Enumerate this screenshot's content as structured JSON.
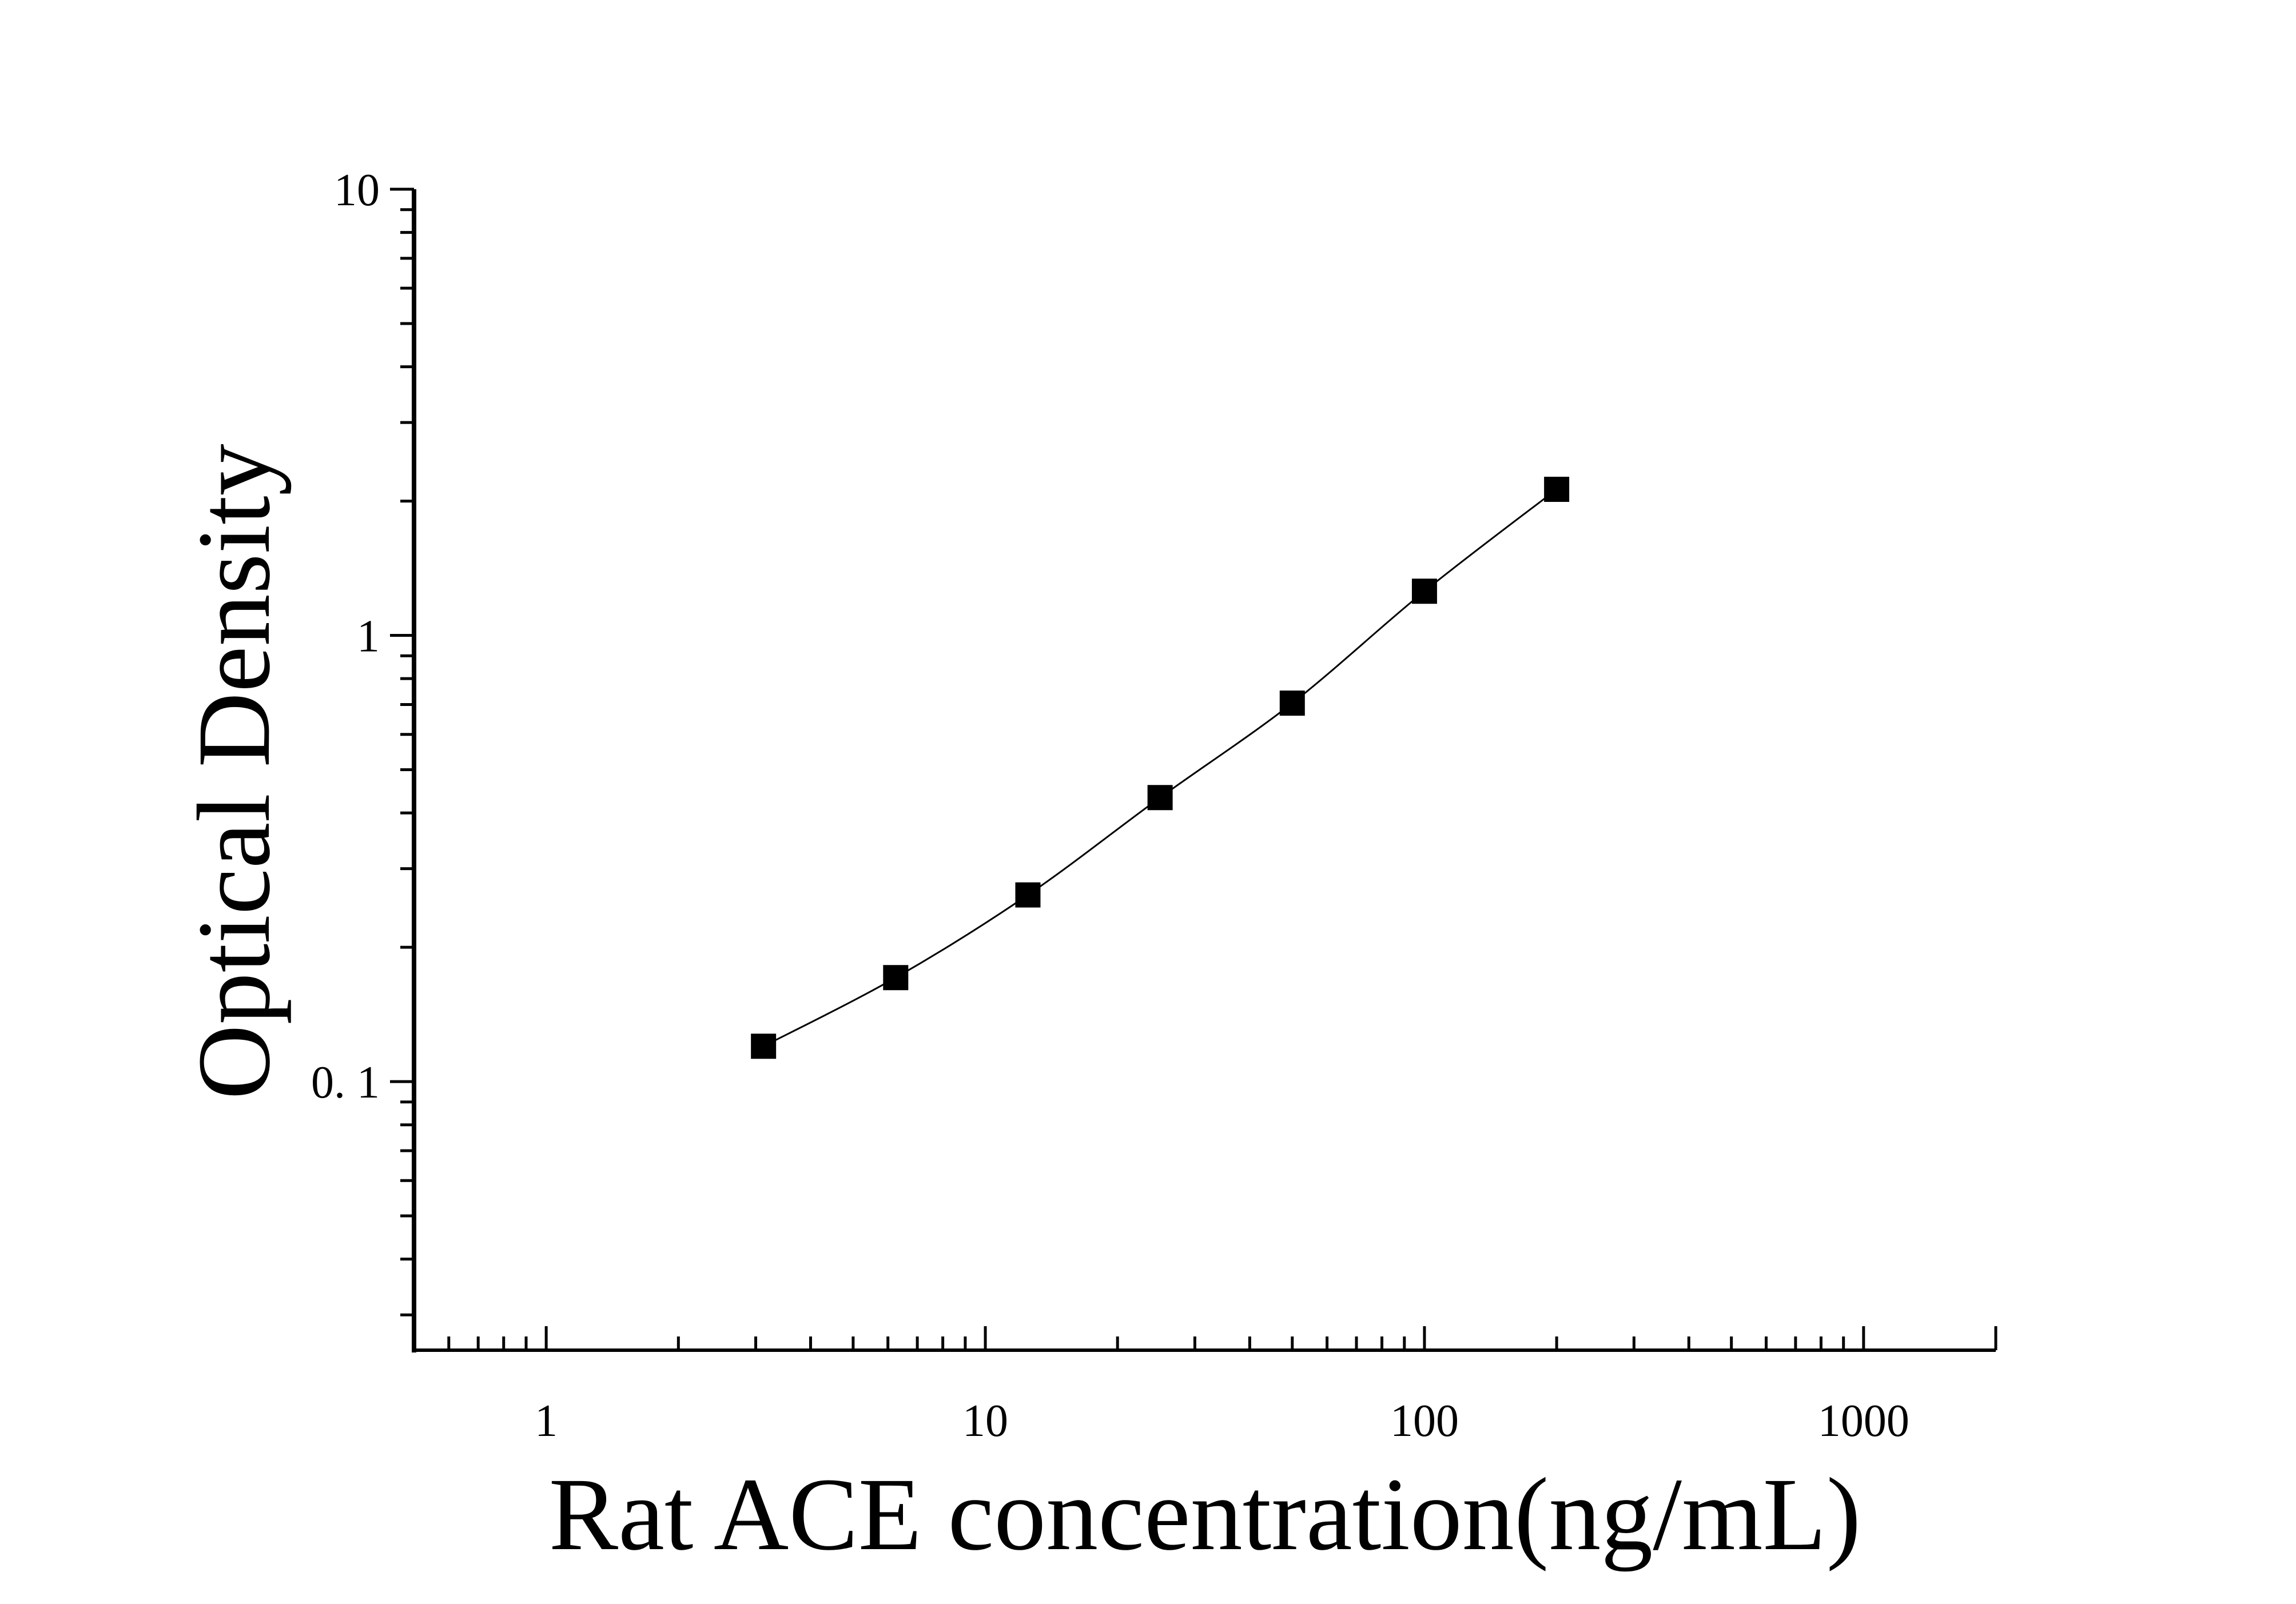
{
  "chart_data": {
    "type": "scatter",
    "title": "",
    "xlabel": "Rat ACE concentration(ng/mL)",
    "ylabel": "Optical Density",
    "x_scale": "log",
    "y_scale": "log",
    "xlim": [
      0.5,
      2000
    ],
    "ylim": [
      0.025,
      10
    ],
    "x_ticks": [
      {
        "value": 1,
        "label": "1"
      },
      {
        "value": 10,
        "label": "10"
      },
      {
        "value": 100,
        "label": "100"
      },
      {
        "value": 1000,
        "label": "1000"
      }
    ],
    "y_ticks": [
      {
        "value": 0.1,
        "label": "0. 1"
      },
      {
        "value": 1,
        "label": "1"
      },
      {
        "value": 10,
        "label": "10"
      }
    ],
    "grid": false,
    "legend": "none",
    "marker": "square",
    "fit_line": "smooth curve through points",
    "color": "#000000",
    "series": [
      {
        "x": [
          3.125,
          6.25,
          12.5,
          25,
          50,
          100,
          200
        ],
        "y": [
          0.12,
          0.171,
          0.262,
          0.433,
          0.705,
          1.256,
          2.125
        ]
      }
    ]
  }
}
